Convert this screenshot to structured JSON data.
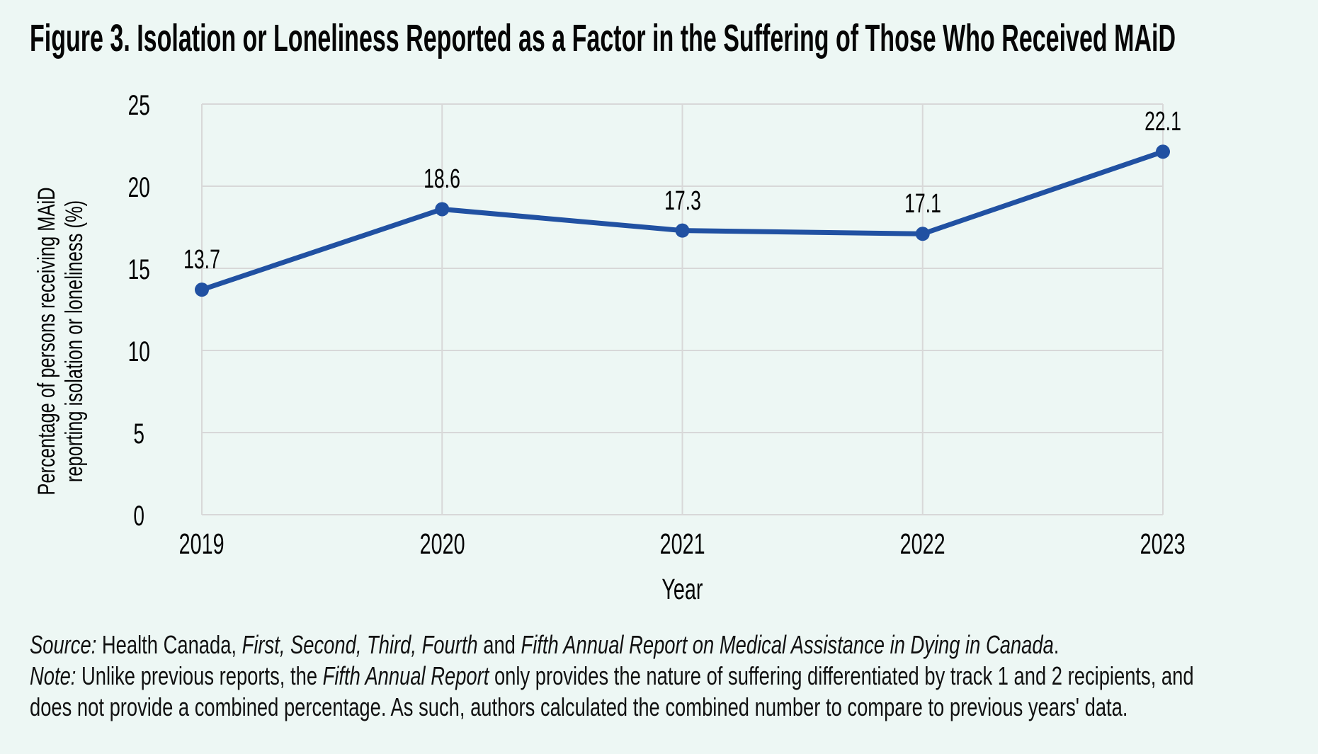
{
  "figure": {
    "title": "Figure 3. Isolation or Loneliness Reported as a Factor in the Suffering of Those Who Received MAiD"
  },
  "chart_data": {
    "type": "line",
    "categories": [
      "2019",
      "2020",
      "2021",
      "2022",
      "2023"
    ],
    "series": [
      {
        "name": "Percentage of persons receiving MAiD reporting isolation or loneliness",
        "values": [
          13.7,
          18.6,
          17.3,
          17.1,
          22.1
        ]
      }
    ],
    "data_labels": [
      "13.7",
      "18.6",
      "17.3",
      "17.1",
      "22.1"
    ],
    "title": "",
    "xlabel": "Year",
    "ylabel_lines": [
      "Percentage of persons receiving MAiD",
      "reporting isolation or loneliness (%)"
    ],
    "ylim": [
      0,
      25
    ],
    "yticks": [
      "0",
      "5",
      "10",
      "15",
      "20",
      "25"
    ],
    "grid": true,
    "legend": "none",
    "marker": "circle"
  },
  "notes": {
    "source_line": [
      {
        "t": "Source:",
        "i": 1
      },
      {
        "t": " Health Canada, ",
        "i": 0
      },
      {
        "t": "First, Second, Third, Fourth",
        "i": 1
      },
      {
        "t": " and ",
        "i": 0
      },
      {
        "t": "Fifth Annual Report on Medical Assistance in Dying in Canada",
        "i": 1
      },
      {
        "t": ".",
        "i": 0
      }
    ],
    "note_line_1": [
      {
        "t": "Note:",
        "i": 1
      },
      {
        "t": " Unlike previous reports, the ",
        "i": 0
      },
      {
        "t": "Fifth Annual Report",
        "i": 1
      },
      {
        "t": " only provides the nature of suffering differentiated by track 1 and 2 recipients, and",
        "i": 0
      }
    ],
    "note_line_2": [
      {
        "t": "does not provide a combined percentage. As such, authors calculated the combined number to compare to previous years' data.",
        "i": 0
      }
    ]
  },
  "colors": {
    "background": "#edf7f4",
    "grid": "#d8d8d8",
    "line": "#2151a2",
    "text": "#000000"
  }
}
